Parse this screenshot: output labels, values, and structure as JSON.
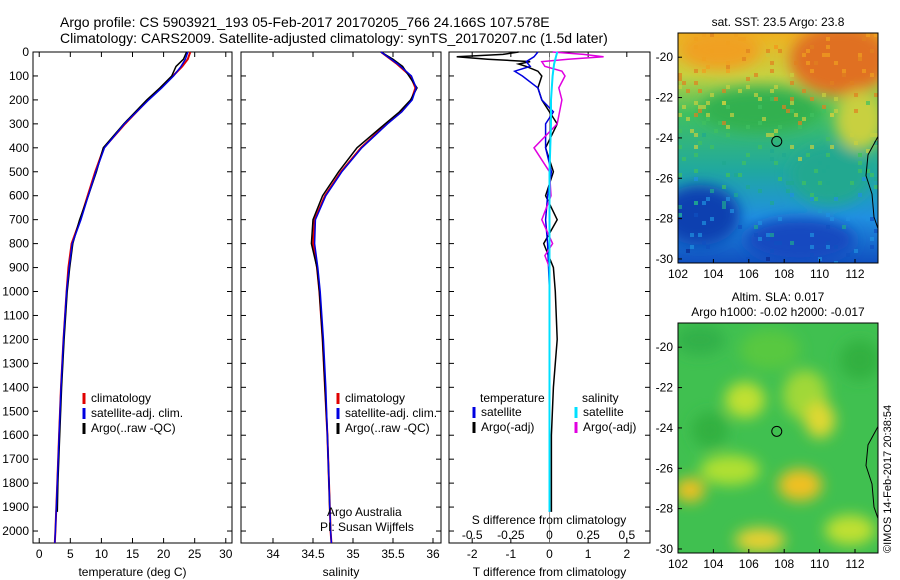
{
  "header": {
    "line1": "Argo profile: CS 5903921_193 05-Feb-2017 20170205_766 24.166S 107.578E",
    "line2": "Climatology: CARS2009. Satellite-adjusted climatology: synTS_20170207.nc (1.5d later)"
  },
  "footer_credit": "©IMOS 14-Feb-2017 20:38:54",
  "colors": {
    "climatology": "#e00000",
    "satellite": "#0000e0",
    "argo": "#000000",
    "sal_satellite": "#00e0ff",
    "sal_argo": "#e000e0"
  },
  "chart_data": [
    {
      "type": "line",
      "name": "temperature-profile",
      "xlabel": "temperature (deg C)",
      "ylim": [
        2050,
        0
      ],
      "xlim": [
        -1,
        31
      ],
      "xticks": [
        "0",
        "5",
        "10",
        "15",
        "20",
        "25",
        "30"
      ],
      "yticks": [
        "0",
        "100",
        "200",
        "300",
        "400",
        "500",
        "600",
        "700",
        "800",
        "900",
        "1000",
        "1100",
        "1200",
        "1300",
        "1400",
        "1500",
        "1600",
        "1700",
        "1800",
        "1900",
        "2000"
      ],
      "legend": [
        "climatology",
        "satellite-adj. clim.",
        "Argo(..raw -QC)"
      ],
      "series": [
        {
          "name": "climatology",
          "depth": [
            0,
            30,
            60,
            100,
            150,
            200,
            300,
            400,
            500,
            600,
            700,
            800,
            900,
            1000,
            1200,
            1400,
            1600,
            1800,
            2000,
            2050
          ],
          "values": [
            24.3,
            23.9,
            23.0,
            21.5,
            19.5,
            17.5,
            13.8,
            10.4,
            9.0,
            7.8,
            6.6,
            5.2,
            4.7,
            4.4,
            3.9,
            3.5,
            3.2,
            2.9,
            2.6,
            2.5
          ]
        },
        {
          "name": "satellite-adj. clim.",
          "depth": [
            0,
            30,
            60,
            100,
            150,
            200,
            300,
            400,
            500,
            600,
            700,
            800,
            900,
            1000,
            1200,
            1400,
            1600,
            1800,
            2000,
            2050
          ],
          "values": [
            23.9,
            23.5,
            22.8,
            21.6,
            19.7,
            17.6,
            13.7,
            10.5,
            9.1,
            7.9,
            6.7,
            5.3,
            4.8,
            4.4,
            3.9,
            3.5,
            3.2,
            2.9,
            2.6,
            2.5
          ]
        },
        {
          "name": "Argo(..raw -QC)",
          "depth": [
            0,
            30,
            60,
            100,
            150,
            200,
            300,
            400,
            500,
            600,
            700,
            800,
            900,
            1000,
            1200,
            1400,
            1600,
            1800,
            1920
          ],
          "values": [
            23.7,
            23.2,
            22.0,
            21.3,
            19.4,
            17.3,
            13.6,
            10.3,
            9.2,
            7.9,
            6.5,
            5.4,
            4.9,
            4.5,
            4.0,
            3.6,
            3.3,
            3.0,
            2.9
          ]
        }
      ]
    },
    {
      "type": "line",
      "name": "salinity-profile",
      "xlabel": "salinity",
      "ylim": [
        2050,
        0
      ],
      "xlim": [
        33.6,
        36.1
      ],
      "xticks": [
        "34",
        "34.5",
        "35",
        "35.5",
        "36"
      ],
      "legend": [
        "climatology",
        "satellite-adj. clim.",
        "Argo(..raw -QC)"
      ],
      "annotation": [
        "Argo Australia",
        "PI: Susan Wijffels"
      ],
      "series": [
        {
          "name": "climatology",
          "depth": [
            0,
            50,
            100,
            150,
            200,
            250,
            300,
            400,
            500,
            600,
            700,
            800,
            900,
            1000,
            1200,
            1400,
            1600,
            1800,
            2000,
            2050
          ],
          "values": [
            35.35,
            35.55,
            35.72,
            35.78,
            35.73,
            35.6,
            35.42,
            35.1,
            34.85,
            34.65,
            34.52,
            34.5,
            34.55,
            34.58,
            34.62,
            34.65,
            34.68,
            34.7,
            34.72,
            34.73
          ]
        },
        {
          "name": "satellite-adj. clim.",
          "depth": [
            0,
            50,
            100,
            150,
            200,
            250,
            300,
            400,
            500,
            600,
            700,
            800,
            900,
            1000,
            1200,
            1400,
            1600,
            1800,
            2000,
            2050
          ],
          "values": [
            35.35,
            35.56,
            35.73,
            35.79,
            35.74,
            35.61,
            35.43,
            35.11,
            34.86,
            34.66,
            34.53,
            34.52,
            34.56,
            34.59,
            34.63,
            34.66,
            34.68,
            34.7,
            34.72,
            34.73
          ]
        },
        {
          "name": "Argo(..raw -QC)",
          "depth": [
            0,
            30,
            60,
            100,
            150,
            200,
            250,
            300,
            400,
            500,
            600,
            700,
            800,
            900,
            1000,
            1200,
            1400,
            1600,
            1800,
            1920
          ],
          "values": [
            35.35,
            35.5,
            35.62,
            35.7,
            35.8,
            35.72,
            35.58,
            35.4,
            35.05,
            34.82,
            34.62,
            34.5,
            34.48,
            34.55,
            34.58,
            34.62,
            34.65,
            34.68,
            34.7,
            34.71
          ]
        }
      ]
    },
    {
      "type": "line",
      "name": "difference-profile",
      "xlabel": "T difference from climatology",
      "xlabel_top": "S difference from climatology",
      "ylim": [
        2050,
        0
      ],
      "xlim": [
        -2.6,
        2.6
      ],
      "xticks": [
        "-2",
        "-1",
        "0",
        "1",
        "2"
      ],
      "xticks_S": [
        "-0.5",
        "-0.25",
        "0",
        "0.25",
        "0.5"
      ],
      "legend": {
        "temperature_title": "temperature",
        "salinity_title": "salinity",
        "items": [
          "satellite",
          "Argo(-adj)",
          "satellite",
          "Argo(-adj)"
        ]
      },
      "series": [
        {
          "name": "temperature satellite",
          "depth": [
            0,
            20,
            40,
            60,
            80,
            100,
            150,
            200,
            250,
            300,
            400,
            500,
            600,
            700,
            800,
            1000,
            1200,
            1500,
            1800,
            1920
          ],
          "values": [
            -0.3,
            -0.4,
            -0.6,
            -0.5,
            -0.9,
            -0.7,
            -0.3,
            -0.2,
            0.1,
            -0.1,
            -0.1,
            0.05,
            -0.05,
            -0.1,
            -0.05,
            0,
            0,
            0,
            0,
            0
          ]
        },
        {
          "name": "temperature Argo(-adj)",
          "depth": [
            0,
            10,
            20,
            30,
            40,
            50,
            60,
            80,
            100,
            150,
            200,
            300,
            400,
            500,
            600,
            700,
            800,
            900,
            1000,
            1200,
            1400,
            1600,
            1800,
            1920
          ],
          "values": [
            -0.8,
            -1.2,
            -2.4,
            -1.6,
            -0.5,
            -0.8,
            -0.6,
            -0.3,
            -0.2,
            -0.3,
            -0.2,
            0.2,
            -0.1,
            0.1,
            -0.1,
            0.2,
            -0.15,
            0.1,
            0.15,
            0.2,
            0.1,
            0.05,
            0.05,
            0.05
          ]
        },
        {
          "name": "salinity satellite",
          "depth": [
            0,
            50,
            100,
            200,
            300,
            500,
            700,
            1000,
            1500,
            1920
          ],
          "values": [
            0.05,
            0.03,
            0.02,
            0.01,
            0.01,
            0,
            0,
            0,
            0,
            0
          ]
        },
        {
          "name": "salinity Argo(-adj)",
          "depth": [
            0,
            10,
            20,
            30,
            40,
            60,
            80,
            100,
            150,
            200,
            300,
            400,
            500,
            600,
            700,
            800,
            850,
            900,
            1000,
            1200,
            1500,
            1920
          ],
          "values": [
            0.02,
            0.22,
            0.35,
            0.12,
            -0.05,
            -0.03,
            0.08,
            0.1,
            0.06,
            0.08,
            0.05,
            -0.1,
            0,
            0.01,
            -0.05,
            0.02,
            -0.03,
            0,
            0,
            0,
            0,
            0
          ]
        }
      ]
    },
    {
      "type": "heatmap",
      "name": "sst-map",
      "title": "sat. SST: 23.5 Argo: 23.8",
      "xlim": [
        102,
        113.3
      ],
      "ylim": [
        -30.2,
        -18.8
      ],
      "xticks": [
        "102",
        "104",
        "106",
        "108",
        "110",
        "112"
      ],
      "yticks": [
        "-20",
        "-22",
        "-24",
        "-26",
        "-28",
        "-30"
      ],
      "float_position": [
        107.58,
        -24.17
      ]
    },
    {
      "type": "heatmap",
      "name": "sla-map",
      "title": "Altim. SLA: 0.017",
      "subtitle": "Argo h1000: -0.02 h2000: -0.017",
      "xlim": [
        102,
        113.3
      ],
      "ylim": [
        -30.2,
        -18.8
      ],
      "xticks": [
        "102",
        "104",
        "106",
        "108",
        "110",
        "112"
      ],
      "yticks": [
        "-20",
        "-22",
        "-24",
        "-26",
        "-28",
        "-30"
      ],
      "float_position": [
        107.58,
        -24.17
      ]
    }
  ]
}
